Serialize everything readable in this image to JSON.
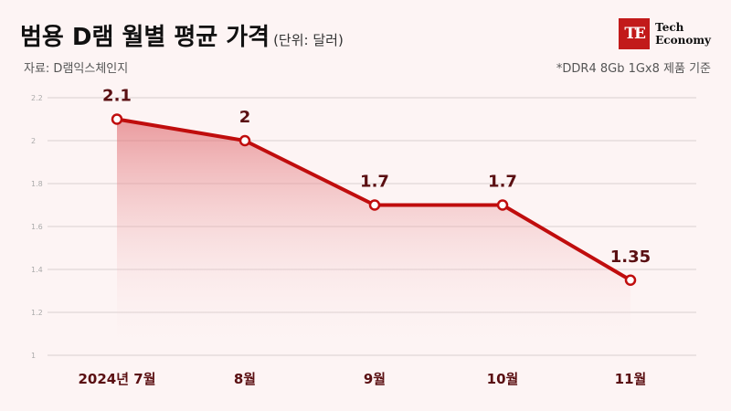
{
  "header": {
    "title": "범용 D램 월별 평균 가격",
    "unit": "(단위: 달러)",
    "source": "자료: D램익스체인지",
    "note": "*DDR4 8Gb 1Gx8 제품 기준"
  },
  "logo": {
    "mark": "TE",
    "line1": "Tech",
    "line2": "Economy"
  },
  "colors": {
    "line": "#c00d0d",
    "area_top": "#e06b70",
    "label": "#5a0f12",
    "background": "#fdf4f4"
  },
  "chart_data": {
    "type": "area",
    "categories": [
      "2024년 7월",
      "8월",
      "9월",
      "10월",
      "11월"
    ],
    "values": [
      2.1,
      2.0,
      1.7,
      1.7,
      1.35
    ],
    "data_labels": [
      "2.1",
      "2",
      "1.7",
      "1.7",
      "1.35"
    ],
    "ylim": [
      1,
      2.2
    ],
    "yticks": [
      "1",
      "1.2",
      "1.4",
      "1.6",
      "1.8",
      "2",
      "2.2"
    ],
    "grid": true,
    "title": "범용 D램 월별 평균 가격",
    "ylabel": "(단위: 달러)",
    "xlabel": ""
  }
}
